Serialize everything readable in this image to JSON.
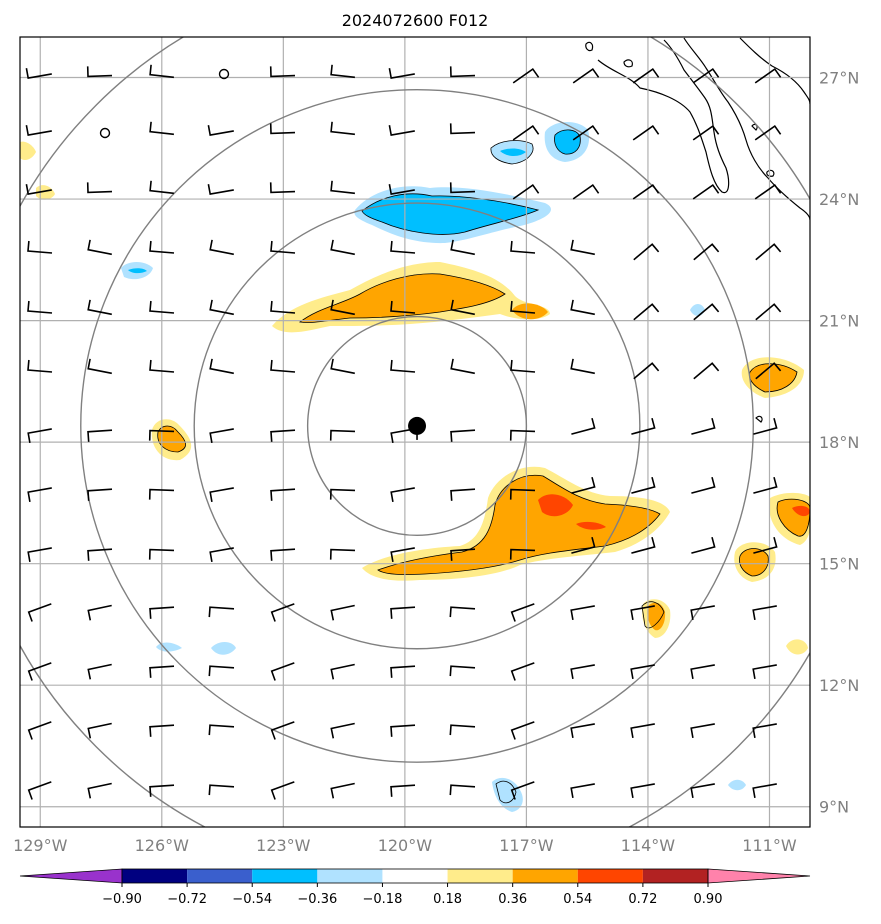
{
  "title": "2024072600 F012",
  "map": {
    "extent": {
      "lon_min": -129.5,
      "lon_max": -110.0,
      "lat_min": 8.5,
      "lat_max": 28.0
    },
    "gridline_color": "#b0b0b0",
    "range_ring_color": "#808080",
    "center": {
      "lon": -119.7,
      "lat": 18.4
    },
    "range_ring_radii_deg": [
      2.7,
      5.5,
      8.3,
      11.2
    ],
    "lon_ticks": [
      {
        "value": -129,
        "label": "129°W"
      },
      {
        "value": -126,
        "label": "126°W"
      },
      {
        "value": -123,
        "label": "123°W"
      },
      {
        "value": -120,
        "label": "120°W"
      },
      {
        "value": -117,
        "label": "117°W"
      },
      {
        "value": -114,
        "label": "114°W"
      },
      {
        "value": -111,
        "label": "111°W"
      }
    ],
    "lat_ticks": [
      {
        "value": 27,
        "label": "27°N"
      },
      {
        "value": 24,
        "label": "24°N"
      },
      {
        "value": 21,
        "label": "21°N"
      },
      {
        "value": 18,
        "label": "18°N"
      },
      {
        "value": 15,
        "label": "15°N"
      },
      {
        "value": 12,
        "label": "12°N"
      },
      {
        "value": 9,
        "label": "9°N"
      }
    ]
  },
  "colorbar": {
    "ticks": [
      "−0.90",
      "−0.72",
      "−0.54",
      "−0.36",
      "−0.18",
      "0.18",
      "0.36",
      "0.54",
      "0.72",
      "0.90"
    ],
    "under_color": "#9932cc",
    "over_color": "#ff82ab",
    "colors": [
      "#9932cc",
      "#000080",
      "#3a5fcd",
      "#00bfff",
      "#b0e2ff",
      "#ffffff",
      "#ffec8b",
      "#ffa500",
      "#ff4500",
      "#b22222",
      "#ff82ab"
    ]
  }
}
